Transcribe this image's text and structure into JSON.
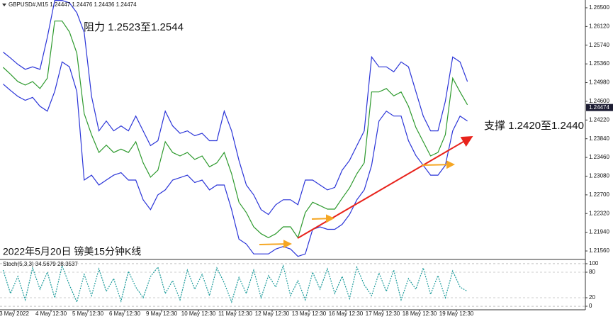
{
  "chart_data": [
    {
      "type": "line",
      "title": "GBPUSD#,M15 1.24447 1.24476 1.24436 1.24474",
      "annotations": [
        "阻力 1.2523至1.2544",
        "支撑 1.2420至1.2440",
        "2022年5月20日 镑美15分钟K线"
      ],
      "current_price": 1.24474,
      "x": [
        -0.3,
        -0.1,
        0.1,
        0.3,
        0.5,
        0.7,
        0.9,
        1.1,
        1.3,
        1.5,
        1.7,
        1.9,
        2.1,
        2.3,
        2.5,
        2.7,
        2.9,
        3.1,
        3.3,
        3.5,
        3.7,
        3.9,
        4.1,
        4.3,
        4.5,
        4.7,
        4.9,
        5.1,
        5.3,
        5.5,
        5.7,
        5.9,
        6.1,
        6.3,
        6.5,
        6.7,
        6.9,
        7.1,
        7.3,
        7.5,
        7.7,
        7.9,
        8.1,
        8.3,
        8.5,
        8.7,
        8.9,
        9.1,
        9.3,
        9.5,
        9.7,
        9.9,
        10.1,
        10.3,
        10.5,
        10.7,
        10.9,
        11.1,
        11.3,
        11.5,
        11.7,
        11.9,
        12.1,
        12.3
      ],
      "series": [
        {
          "color": "#2b35d8",
          "values": [
            1.256,
            1.2548,
            1.2535,
            1.2525,
            1.253,
            1.2525,
            1.259,
            1.2665,
            1.2665,
            1.266,
            1.264,
            1.26,
            1.247,
            1.24,
            1.242,
            1.24,
            1.241,
            1.24,
            1.243,
            1.24,
            1.237,
            1.238,
            1.244,
            1.241,
            1.2395,
            1.24,
            1.239,
            1.2395,
            1.238,
            1.238,
            1.244,
            1.24,
            1.234,
            1.229,
            1.227,
            1.224,
            1.223,
            1.225,
            1.226,
            1.226,
            1.225,
            1.23,
            1.23,
            1.229,
            1.228,
            1.2285,
            1.232,
            1.234,
            1.237,
            1.24,
            1.255,
            1.253,
            1.253,
            1.252,
            1.254,
            1.253,
            1.248,
            1.243,
            1.24,
            1.24,
            1.246,
            1.255,
            1.254,
            1.25
          ]
        },
        {
          "color": "#2b35d8",
          "values": [
            1.2495,
            1.2482,
            1.247,
            1.2462,
            1.2468,
            1.245,
            1.244,
            1.248,
            1.254,
            1.253,
            1.248,
            1.23,
            1.231,
            1.229,
            1.23,
            1.231,
            1.2315,
            1.23,
            1.23,
            1.226,
            1.224,
            1.227,
            1.228,
            1.23,
            1.2305,
            1.231,
            1.2295,
            1.23,
            1.228,
            1.229,
            1.229,
            1.224,
            1.218,
            1.217,
            1.215,
            1.215,
            1.215,
            1.216,
            1.2165,
            1.216,
            1.2145,
            1.215,
            1.22,
            1.2205,
            1.22,
            1.22,
            1.221,
            1.223,
            1.226,
            1.228,
            1.233,
            1.242,
            1.244,
            1.243,
            1.243,
            1.238,
            1.235,
            1.233,
            1.231,
            1.231,
            1.233,
            1.24,
            1.243,
            1.242
          ]
        },
        {
          "color": "#2e9a2e",
          "values": [
            1.2529,
            1.2515,
            1.25,
            1.2493,
            1.25,
            1.2486,
            1.2507,
            1.2623,
            1.2623,
            1.2601,
            1.2558,
            1.2435,
            1.2392,
            1.2356,
            1.2371,
            1.2356,
            1.2363,
            1.2356,
            1.2378,
            1.2335,
            1.2306,
            1.232,
            1.2378,
            1.2356,
            1.2349,
            1.2356,
            1.2342,
            1.2349,
            1.2327,
            1.2335,
            1.2356,
            1.2313,
            1.2255,
            1.2234,
            1.2205,
            1.2191,
            1.2183,
            1.2191,
            1.2205,
            1.2205,
            1.2183,
            1.2234,
            1.2255,
            1.2248,
            1.2241,
            1.2241,
            1.2263,
            1.2284,
            1.2313,
            1.2335,
            1.2479,
            1.2479,
            1.2486,
            1.2471,
            1.2479,
            1.245,
            1.2407,
            1.2378,
            1.2349,
            1.2356,
            1.2392,
            1.2507,
            1.2479,
            1.2453
          ]
        }
      ],
      "xlim": [
        -0.385,
        15.5
      ],
      "ylim": [
        1.21402,
        1.26658
      ],
      "yticks": [
        {
          "value": 1.265,
          "label": "1.26500"
        },
        {
          "value": 1.2612,
          "label": "1.26120"
        },
        {
          "value": 1.2574,
          "label": "1.25740"
        },
        {
          "value": 1.2536,
          "label": "1.25360"
        },
        {
          "value": 1.2498,
          "label": "1.24980"
        },
        {
          "value": 1.246,
          "label": "1.24600"
        },
        {
          "value": 1.2422,
          "label": "1.24220"
        },
        {
          "value": 1.2384,
          "label": "1.23840"
        },
        {
          "value": 1.2346,
          "label": "1.23460"
        },
        {
          "value": 1.2308,
          "label": "1.23080"
        },
        {
          "value": 1.227,
          "label": "1.22700"
        },
        {
          "value": 1.2232,
          "label": "1.22320"
        },
        {
          "value": 1.2194,
          "label": "1.21940"
        },
        {
          "value": 1.2156,
          "label": "1.21560"
        }
      ]
    },
    {
      "type": "line",
      "title": "Stoch(5,3,3) 34.5679 28.3537",
      "x": [
        -0.3,
        -0.1,
        0.1,
        0.3,
        0.5,
        0.7,
        0.9,
        1.1,
        1.3,
        1.5,
        1.7,
        1.9,
        2.1,
        2.3,
        2.5,
        2.7,
        2.9,
        3.1,
        3.3,
        3.5,
        3.7,
        3.9,
        4.1,
        4.3,
        4.5,
        4.7,
        4.9,
        5.1,
        5.3,
        5.5,
        5.7,
        5.9,
        6.1,
        6.3,
        6.5,
        6.7,
        6.9,
        7.1,
        7.3,
        7.5,
        7.7,
        7.9,
        8.1,
        8.3,
        8.5,
        8.7,
        8.9,
        9.1,
        9.3,
        9.5,
        9.7,
        9.9,
        10.1,
        10.3,
        10.5,
        10.7,
        10.9,
        11.1,
        11.3,
        11.5,
        11.7,
        11.9,
        12.1,
        12.3
      ],
      "series": [
        {
          "color": "#1a9a9a",
          "values": [
            85,
            30,
            70,
            15,
            90,
            40,
            80,
            20,
            95,
            50,
            10,
            75,
            25,
            88,
            35,
            65,
            12,
            82,
            45,
            20,
            70,
            92,
            30,
            60,
            15,
            85,
            40,
            75,
            25,
            90,
            55,
            10,
            68,
            30,
            85,
            20,
            72,
            45,
            95,
            25,
            60,
            15,
            80,
            40,
            88,
            30,
            70,
            18,
            92,
            50,
            25,
            78,
            35,
            85,
            15,
            65,
            40,
            90,
            28,
            72,
            20,
            83,
            45,
            35
          ]
        }
      ],
      "xlim": [
        -0.385,
        15.5
      ],
      "ylim": [
        -8.3,
        108.3
      ],
      "yticks": [
        0,
        20,
        80,
        100
      ],
      "xticks": [
        {
          "value": 0,
          "label": "3 May 2022"
        },
        {
          "value": 1,
          "label": "4 May 12:30"
        },
        {
          "value": 2,
          "label": "5 May 12:30"
        },
        {
          "value": 3,
          "label": "6 May 12:30"
        },
        {
          "value": 4,
          "label": "9 May 12:30"
        },
        {
          "value": 5,
          "label": "10 May 12:30"
        },
        {
          "value": 6,
          "label": "11 May 12:30"
        },
        {
          "value": 7,
          "label": "12 May 12:30"
        },
        {
          "value": 8,
          "label": "13 May 12:30"
        },
        {
          "value": 9,
          "label": "16 May 12:30"
        },
        {
          "value": 10,
          "label": "17 May 12:30"
        },
        {
          "value": 11,
          "label": "18 May 12:30"
        },
        {
          "value": 12,
          "label": "19 May 12:30"
        }
      ]
    }
  ]
}
